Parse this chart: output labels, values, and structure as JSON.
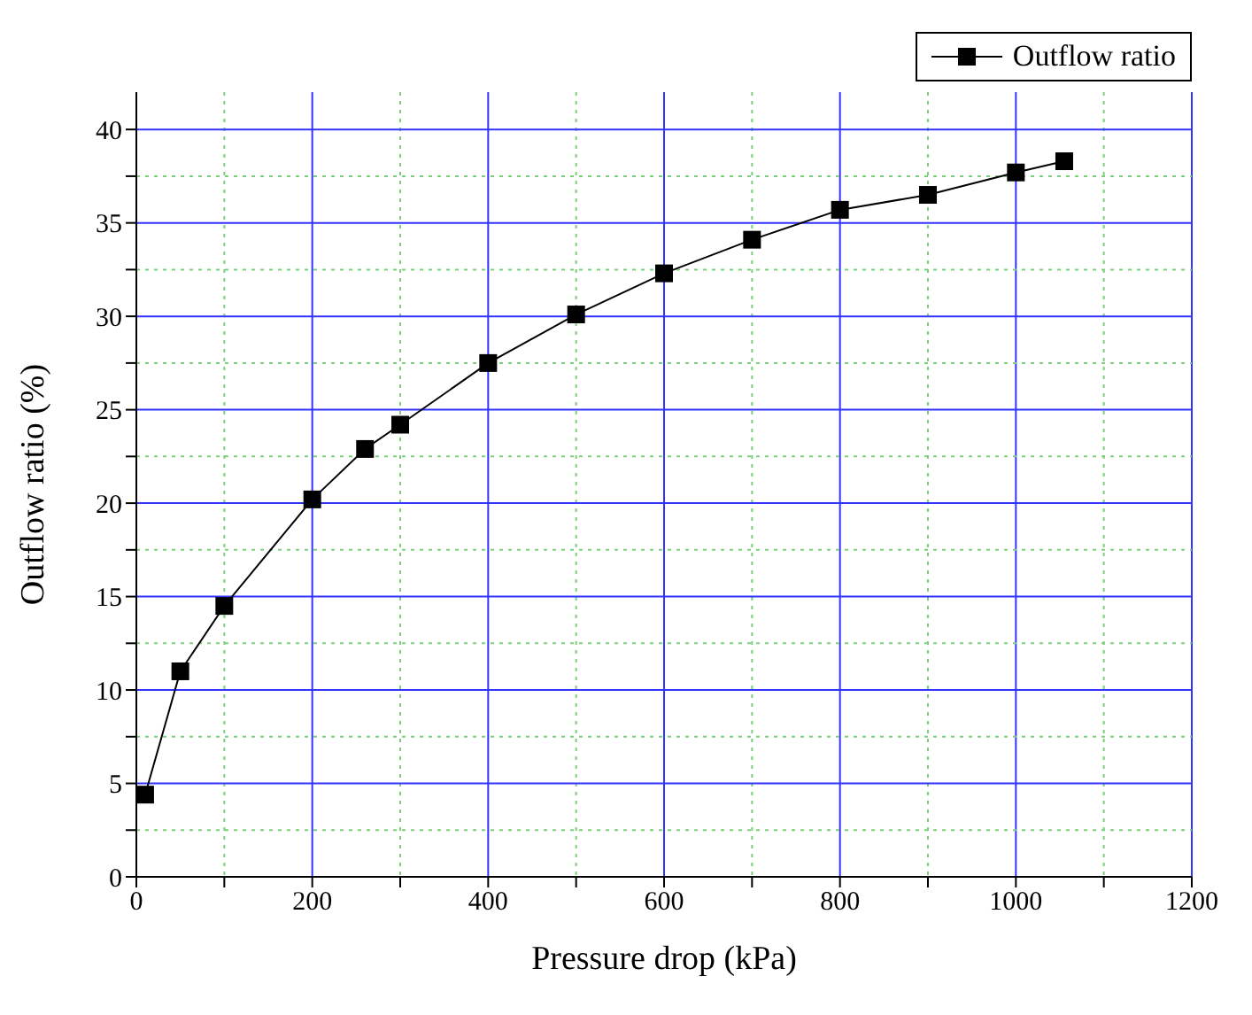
{
  "chart_data": {
    "type": "line",
    "xlabel": "Pressure drop (kPa)",
    "ylabel": "Outflow ratio (%)",
    "x": [
      10,
      50,
      100,
      200,
      260,
      300,
      400,
      500,
      600,
      700,
      800,
      900,
      1000,
      1055
    ],
    "series": [
      {
        "name": "Outflow ratio",
        "color": "#000000",
        "values": [
          4.4,
          11.0,
          14.5,
          20.2,
          22.9,
          24.2,
          27.5,
          30.1,
          32.3,
          34.1,
          35.7,
          36.5,
          37.7,
          38.3
        ]
      }
    ],
    "xlim": [
      0,
      1200
    ],
    "xticks": [
      0,
      {
        "value": 100,
        "label": null
      },
      200,
      {
        "value": 300,
        "label": null
      },
      400,
      {
        "value": 500,
        "label": null
      },
      600,
      {
        "value": 700,
        "label": null
      },
      800,
      {
        "value": 900,
        "label": null
      },
      1000,
      {
        "value": 1100,
        "label": null
      },
      1200
    ],
    "ylim": [
      0,
      42
    ],
    "yticks": [
      0,
      {
        "value": 2.5,
        "label": null
      },
      5,
      {
        "value": 7.5,
        "label": null
      },
      10,
      {
        "value": 12.5,
        "label": null
      },
      15,
      {
        "value": 17.5,
        "label": null
      },
      20,
      {
        "value": 22.5,
        "label": null
      },
      25,
      {
        "value": 27.5,
        "label": null
      },
      30,
      {
        "value": 32.5,
        "label": null
      },
      35,
      {
        "value": 37.5,
        "label": null
      },
      40
    ],
    "grid": true,
    "legend": "top right",
    "marker": "square",
    "line_style": "solid"
  }
}
